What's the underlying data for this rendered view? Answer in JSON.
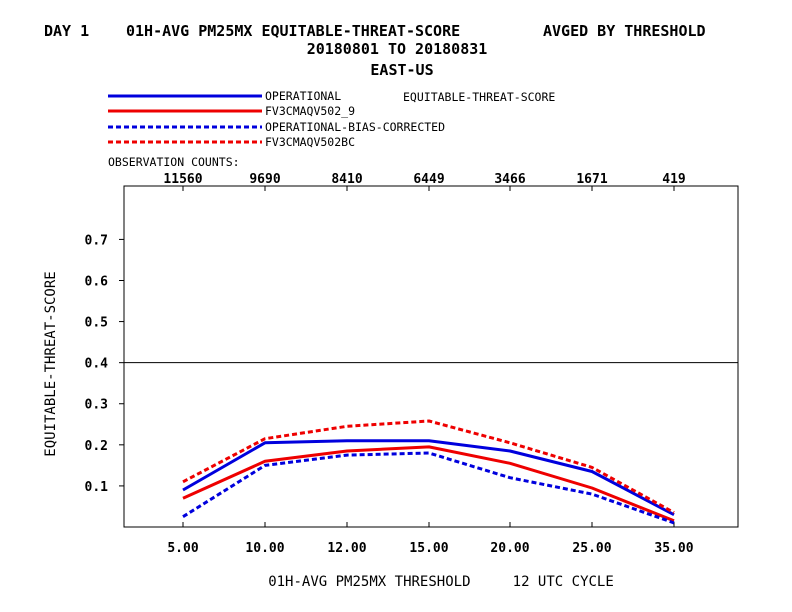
{
  "title": {
    "line1_left": "DAY 1",
    "line1_main": "01H-AVG PM25MX EQUITABLE-THREAT-SCORE",
    "line1_right": "AVGED BY THRESHOLD",
    "line2": "20180801 TO 20180831",
    "line3": "EAST-US"
  },
  "legend_note": "EQUITABLE-THREAT-SCORE",
  "obs_counts_label": "OBSERVATION COUNTS:",
  "obs_counts": [
    "11560",
    "9690",
    "8410",
    "6449",
    "3466",
    "1671",
    "419"
  ],
  "colors": {
    "blue": "#0000dd",
    "red": "#ee0000",
    "axis": "#000000"
  },
  "chart_data": {
    "type": "line",
    "x": [
      "5.00",
      "10.00",
      "12.00",
      "15.00",
      "20.00",
      "25.00",
      "35.00"
    ],
    "xlabel": "01H-AVG PM25MX THRESHOLD     12 UTC CYCLE",
    "ylabel": "EQUITABLE-THREAT-SCORE",
    "ylim": [
      0,
      0.83
    ],
    "yticks": [
      "0.1",
      "0.2",
      "0.3",
      "0.4",
      "0.5",
      "0.6",
      "0.7"
    ],
    "reference_line": 0.4,
    "legend_placement": "top-left",
    "series": [
      {
        "name": "OPERATIONAL",
        "color": "blue",
        "style": "solid",
        "values": [
          0.09,
          0.205,
          0.21,
          0.21,
          0.185,
          0.135,
          0.03
        ]
      },
      {
        "name": "FV3CMAQV502_9",
        "color": "red",
        "style": "solid",
        "values": [
          0.07,
          0.16,
          0.185,
          0.195,
          0.155,
          0.095,
          0.015
        ]
      },
      {
        "name": "OPERATIONAL-BIAS-CORRECTED",
        "color": "blue",
        "style": "dashed",
        "values": [
          0.025,
          0.15,
          0.175,
          0.18,
          0.12,
          0.08,
          0.01
        ]
      },
      {
        "name": "FV3CMAQV502BC",
        "color": "red",
        "style": "dashed",
        "values": [
          0.11,
          0.215,
          0.245,
          0.258,
          0.205,
          0.145,
          0.035
        ]
      }
    ]
  }
}
